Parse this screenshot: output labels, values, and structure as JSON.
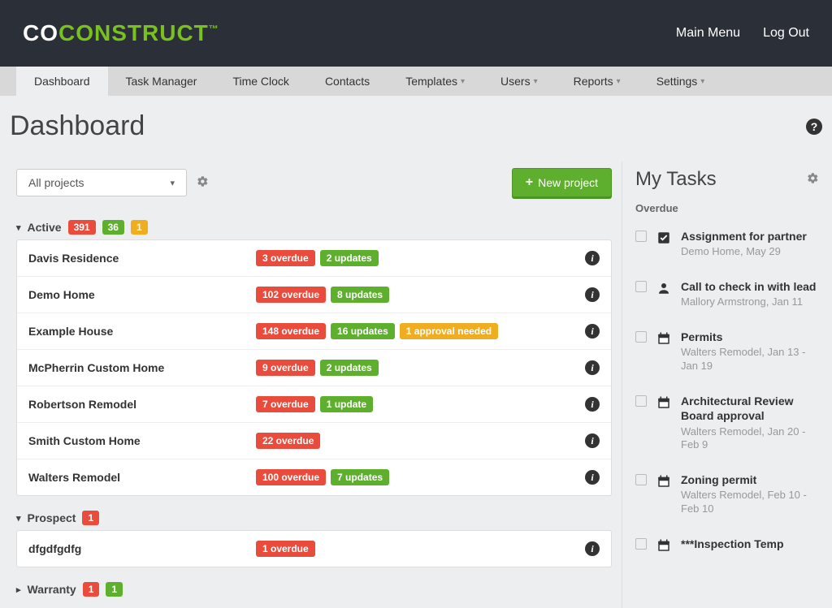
{
  "header": {
    "logo_co": "CO",
    "logo_rest": "CONSTRUCT",
    "logo_tm": "™",
    "main_menu": "Main Menu",
    "log_out": "Log Out"
  },
  "nav": {
    "items": [
      {
        "label": "Dashboard",
        "dropdown": false,
        "active": true
      },
      {
        "label": "Task Manager",
        "dropdown": false,
        "active": false
      },
      {
        "label": "Time Clock",
        "dropdown": false,
        "active": false
      },
      {
        "label": "Contacts",
        "dropdown": false,
        "active": false
      },
      {
        "label": "Templates",
        "dropdown": true,
        "active": false
      },
      {
        "label": "Users",
        "dropdown": true,
        "active": false
      },
      {
        "label": "Reports",
        "dropdown": true,
        "active": false
      },
      {
        "label": "Settings",
        "dropdown": true,
        "active": false
      }
    ]
  },
  "page": {
    "title": "Dashboard"
  },
  "filter": {
    "select_label": "All projects",
    "new_project": "New project"
  },
  "sections": [
    {
      "name": "Active",
      "expanded": true,
      "badges": [
        {
          "text": "391",
          "color": "red"
        },
        {
          "text": "36",
          "color": "green"
        },
        {
          "text": "1",
          "color": "yellow"
        }
      ],
      "projects": [
        {
          "name": "Davis Residence",
          "badges": [
            {
              "text": "3 overdue",
              "color": "red"
            },
            {
              "text": "2 updates",
              "color": "green"
            }
          ]
        },
        {
          "name": "Demo Home",
          "badges": [
            {
              "text": "102 overdue",
              "color": "red"
            },
            {
              "text": "8 updates",
              "color": "green"
            }
          ]
        },
        {
          "name": "Example House",
          "badges": [
            {
              "text": "148 overdue",
              "color": "red"
            },
            {
              "text": "16 updates",
              "color": "green"
            },
            {
              "text": "1 approval needed",
              "color": "yellow"
            }
          ]
        },
        {
          "name": "McPherrin Custom Home",
          "badges": [
            {
              "text": "9 overdue",
              "color": "red"
            },
            {
              "text": "2 updates",
              "color": "green"
            }
          ]
        },
        {
          "name": "Robertson Remodel",
          "badges": [
            {
              "text": "7 overdue",
              "color": "red"
            },
            {
              "text": "1 update",
              "color": "green"
            }
          ]
        },
        {
          "name": "Smith Custom Home",
          "badges": [
            {
              "text": "22 overdue",
              "color": "red"
            }
          ]
        },
        {
          "name": "Walters Remodel",
          "badges": [
            {
              "text": "100 overdue",
              "color": "red"
            },
            {
              "text": "7 updates",
              "color": "green"
            }
          ]
        }
      ]
    },
    {
      "name": "Prospect",
      "expanded": true,
      "badges": [
        {
          "text": "1",
          "color": "red"
        }
      ],
      "projects": [
        {
          "name": "dfgdfgdfg",
          "badges": [
            {
              "text": "1 overdue",
              "color": "red"
            }
          ]
        }
      ]
    },
    {
      "name": "Warranty",
      "expanded": false,
      "badges": [
        {
          "text": "1",
          "color": "red"
        },
        {
          "text": "1",
          "color": "green"
        }
      ],
      "projects": []
    }
  ],
  "tasks": {
    "title": "My Tasks",
    "subhead": "Overdue",
    "items": [
      {
        "icon": "checkbox",
        "title": "Assignment for partner",
        "sub": "Demo Home, May 29"
      },
      {
        "icon": "person",
        "title": "Call to check in with lead",
        "sub": "Mallory Armstrong, Jan 11"
      },
      {
        "icon": "calendar",
        "title": "Permits",
        "sub": "Walters Remodel, Jan 13 - Jan 19"
      },
      {
        "icon": "calendar",
        "title": "Architectural Review Board approval",
        "sub": "Walters Remodel, Jan 20 - Feb 9"
      },
      {
        "icon": "calendar",
        "title": "Zoning permit",
        "sub": "Walters Remodel, Feb 10 - Feb 10"
      },
      {
        "icon": "calendar",
        "title": "***Inspection Temp",
        "sub": ""
      }
    ]
  },
  "colors": {
    "brand_green": "#79c21d",
    "header_bg": "#2b2f37",
    "nav_bg": "#d8d8d8",
    "page_bg": "#eceeef",
    "badge_red": "#e94b3c",
    "badge_green": "#5faf2f",
    "badge_yellow": "#f0ad1f"
  }
}
